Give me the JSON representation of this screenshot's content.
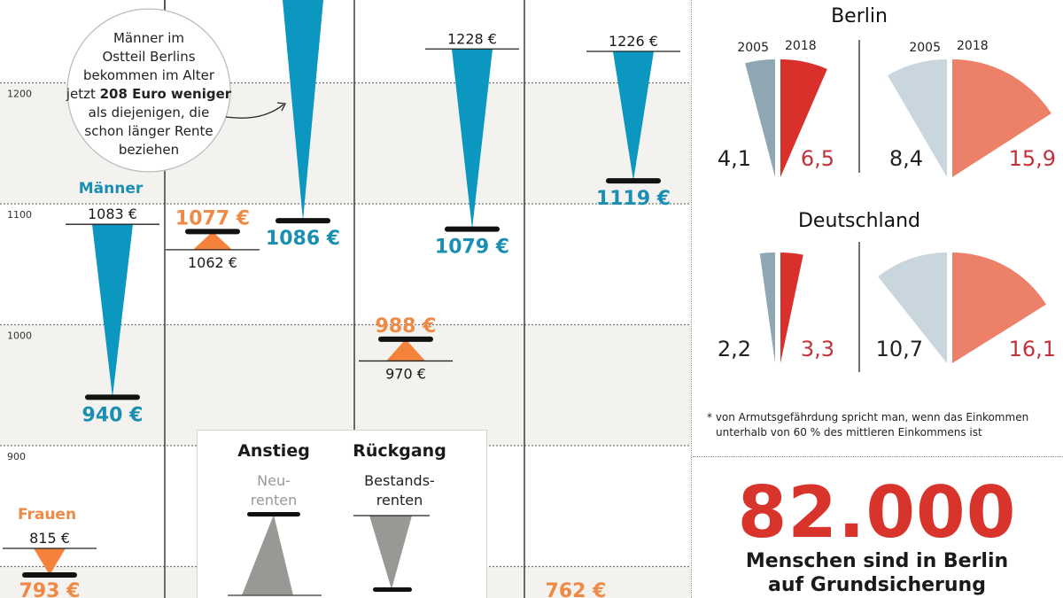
{
  "colors": {
    "men": "#0b97bf",
    "men_text": "#1a8fb2",
    "women": "#f5823a",
    "women_text": "#ee8a46",
    "band": "#f4f2ee",
    "legend_gray": "#999895"
  },
  "chart_data": [
    {
      "type": "range-arrows",
      "unit": "€",
      "y_ticks": [
        1200,
        1100,
        1000,
        900
      ],
      "series_labels": {
        "men": "Männer",
        "women": "Frauen"
      },
      "groups": [
        {
          "men": {
            "from": 1083,
            "to": 940
          },
          "women": {
            "from": 815,
            "to": 793
          }
        },
        {
          "men": {
            "from": null,
            "to": 1086
          },
          "women": {
            "from": 1062,
            "to": 1077
          }
        },
        {
          "men": {
            "from": 1228,
            "to": 1079
          },
          "women": {
            "from": 970,
            "to": 988
          }
        },
        {
          "men": {
            "from": 1226,
            "to": 1119
          },
          "women": {
            "from": null,
            "to": 762
          }
        }
      ]
    },
    {
      "type": "pie-sectors",
      "unit": "%",
      "years": [
        "2005",
        "2018"
      ],
      "regions": [
        {
          "title": "Berlin",
          "pairs": [
            {
              "values": [
                4.1,
                6.5
              ],
              "labels": [
                "4,1",
                "6,5"
              ]
            },
            {
              "values": [
                8.4,
                15.9
              ],
              "labels": [
                "8,4",
                "15,9"
              ]
            }
          ]
        },
        {
          "title": "Deutschland",
          "pairs": [
            {
              "values": [
                2.2,
                3.3
              ],
              "labels": [
                "2,2",
                "3,3"
              ]
            },
            {
              "values": [
                10.7,
                16.1
              ],
              "labels": [
                "10,7",
                "16,1"
              ]
            }
          ]
        }
      ],
      "sector_colors": {
        "small_2005": "#8fa7b3",
        "small_2018": "#d9302c",
        "large_2005": "#c9d6dd",
        "large_2018": "#ec8068",
        "value_red": "#c2323a"
      }
    }
  ],
  "callout": {
    "lines": [
      "Männer im",
      "Ostteil Berlins",
      "bekommen im Alter"
    ],
    "line4_pre": "jetzt ",
    "line4_bold": "208 Euro weniger",
    "lines_after": [
      "als diejenigen, die",
      "schon länger Rente",
      "beziehen"
    ]
  },
  "legend": {
    "rise_title": "Anstieg",
    "rise_sub1": "Neu-",
    "rise_sub2": "renten",
    "fall_title": "Rückgang",
    "fall_sub1": "Bestands-",
    "fall_sub2": "renten"
  },
  "footnote": {
    "line1": "* von Armutsgefährdung spricht man, wenn das Einkommen",
    "line2": "unterhalb von 60 % des mittleren Einkommens ist"
  },
  "highlight": {
    "number": "82.000",
    "caption1": "Menschen sind in Berlin",
    "caption2": "auf Grundsicherung"
  }
}
